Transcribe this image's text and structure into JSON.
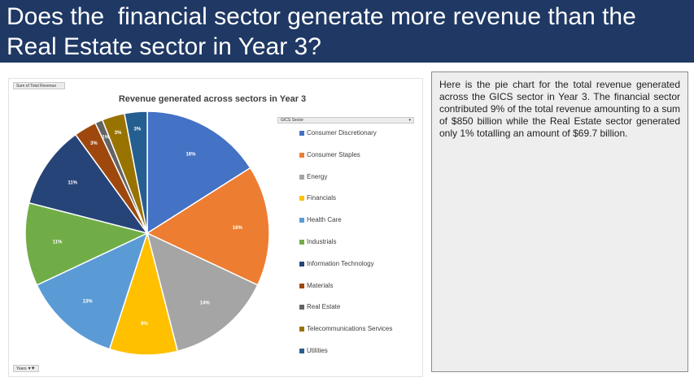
{
  "header": {
    "title": "Does the  financial sector generate more revenue than the Real Estate sector in Year 3?"
  },
  "pivot": {
    "value_field": "Sum of  Total Revenue",
    "legend_field": "GICS Sector",
    "axis_field": "Years",
    "filter_icon": "filter-icon"
  },
  "colors": {
    "header_bg": "#1f3864"
  },
  "chart_data": {
    "type": "pie",
    "title": "Revenue generated across sectors in Year 3",
    "legend_position": "right",
    "slices": [
      {
        "name": "Consumer Discretionary",
        "value": 16,
        "label": "16%",
        "color": "#4472c4"
      },
      {
        "name": "Consumer Staples",
        "value": 16,
        "label": "16%",
        "color": "#ed7d31"
      },
      {
        "name": "Energy",
        "value": 14,
        "label": "14%",
        "color": "#a5a5a5"
      },
      {
        "name": "Financials",
        "value": 9,
        "label": "9%",
        "color": "#ffc000"
      },
      {
        "name": "Health Care",
        "value": 13,
        "label": "13%",
        "color": "#5b9bd5"
      },
      {
        "name": "Industrials",
        "value": 11,
        "label": "11%",
        "color": "#70ad47"
      },
      {
        "name": "Information Technology",
        "value": 11,
        "label": "11%",
        "color": "#264478"
      },
      {
        "name": "Materials",
        "value": 3,
        "label": "3%",
        "color": "#9e480e"
      },
      {
        "name": "Real Estate",
        "value": 1,
        "label": "1%",
        "color": "#636363"
      },
      {
        "name": "Telecommunications Services",
        "value": 3,
        "label": "3%",
        "color": "#997300"
      },
      {
        "name": "Utilities",
        "value": 3,
        "label": "3%",
        "color": "#255e91"
      }
    ]
  },
  "note": {
    "text": "Here is the pie chart for the total revenue generated across the GICS sector in Year 3. The financial sector contributed 9% of the total revenue amounting to a sum of $850 billion while the Real Estate sector generated only 1% totalling an amount of $69.7 billion."
  }
}
